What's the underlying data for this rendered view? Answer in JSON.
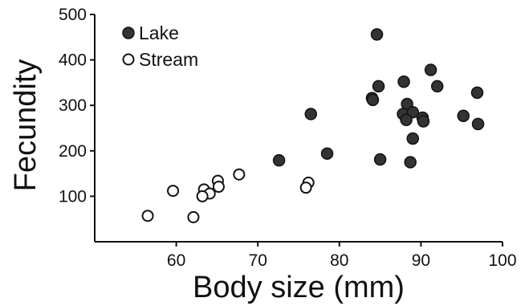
{
  "chart_data": {
    "type": "scatter",
    "xlabel": "Body size (mm)",
    "ylabel": "Fecundity",
    "xlim": [
      50,
      100
    ],
    "ylim": [
      0,
      500
    ],
    "xticks": [
      60,
      70,
      80,
      90,
      100
    ],
    "yticks": [
      100,
      200,
      300,
      400,
      500
    ],
    "grid": false,
    "legend_position": "top-left",
    "series": [
      {
        "name": "Lake",
        "marker": "filled-circle",
        "color": "#333333",
        "points": [
          [
            84.6,
            456
          ],
          [
            91.2,
            378
          ],
          [
            87.9,
            352
          ],
          [
            84.8,
            342
          ],
          [
            92.0,
            342
          ],
          [
            96.9,
            328
          ],
          [
            84.0,
            316
          ],
          [
            84.1,
            312
          ],
          [
            88.3,
            303
          ],
          [
            76.5,
            281
          ],
          [
            87.8,
            281
          ],
          [
            89.0,
            285
          ],
          [
            95.2,
            277
          ],
          [
            90.2,
            273
          ],
          [
            88.2,
            268
          ],
          [
            90.3,
            265
          ],
          [
            97.0,
            259
          ],
          [
            89.0,
            227
          ],
          [
            78.5,
            194
          ],
          [
            72.6,
            179
          ],
          [
            85.0,
            181
          ],
          [
            88.7,
            175
          ]
        ]
      },
      {
        "name": "Stream",
        "marker": "open-circle",
        "color": "#111111",
        "points": [
          [
            67.7,
            148
          ],
          [
            65.1,
            134
          ],
          [
            76.2,
            130
          ],
          [
            65.2,
            121
          ],
          [
            75.9,
            119
          ],
          [
            63.4,
            115
          ],
          [
            59.6,
            112
          ],
          [
            64.1,
            106
          ],
          [
            63.2,
            100
          ],
          [
            56.5,
            57
          ],
          [
            62.1,
            54
          ]
        ]
      }
    ]
  }
}
